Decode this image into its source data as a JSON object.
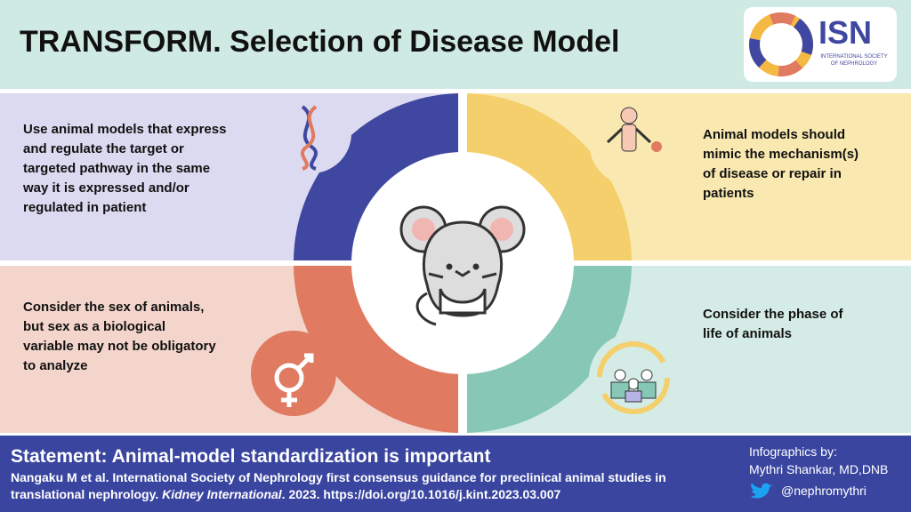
{
  "header": {
    "title": "TRANSFORM. Selection of Disease Model"
  },
  "logo": {
    "acronym": "ISN",
    "name": "INTERNATIONAL SOCIETY OF NEPHROLOGY"
  },
  "quadrants": [
    {
      "text": "Use animal models that express and regulate the target or targeted pathway in the same way it is expressed and/or regulated in patient"
    },
    {
      "text": "Animal models should mimic the mechanism(s) of disease or repair in patients"
    },
    {
      "text": "Consider the sex of animals, but sex as a biological variable may not be obligatory to analyze"
    },
    {
      "text": "Consider the phase of life of animals"
    }
  ],
  "footer": {
    "statement": "Statement: Animal-model standardization is important",
    "citation": [
      "Nangaku M et al. International Society of Nephrology first consensus guidance for preclinical animal studies in translational nephrology. ",
      "Kidney International",
      ". 2023. https://doi.org/10.1016/j.kint.2023.03.007"
    ],
    "credit": "Infographics by:",
    "author": "Mythri Shankar, MD,DNB",
    "handle": "@nephromythri"
  }
}
